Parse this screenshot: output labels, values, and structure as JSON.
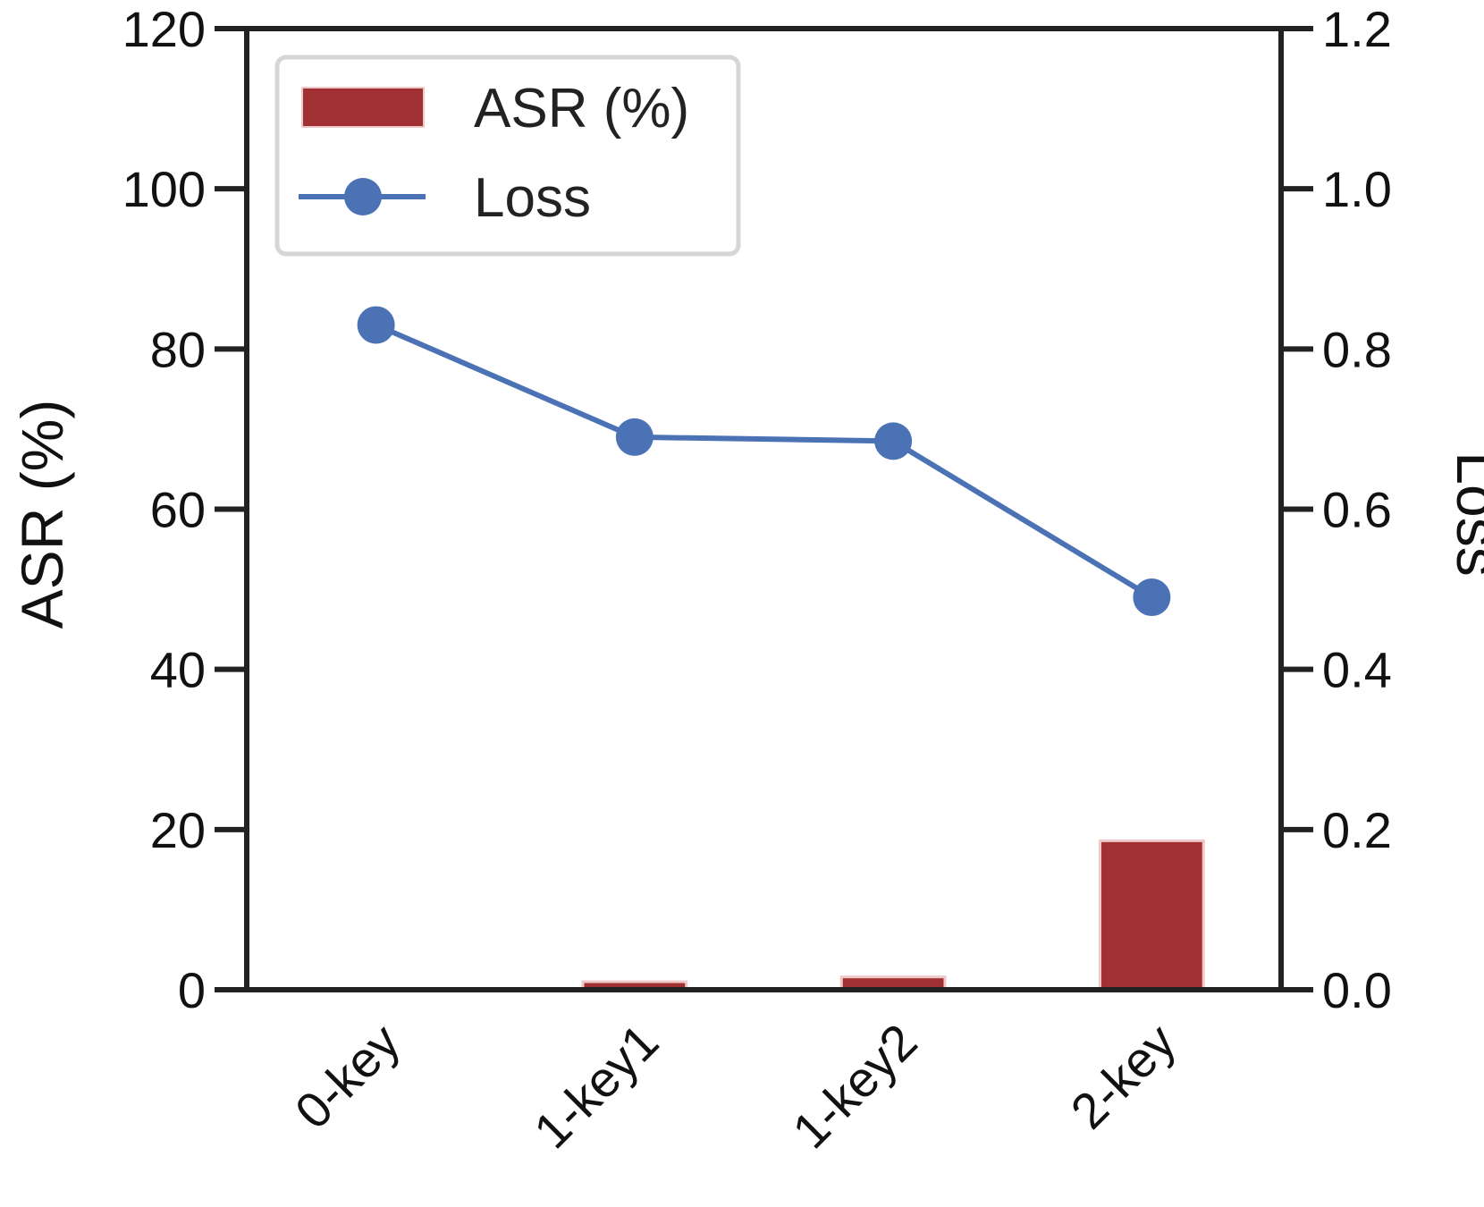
{
  "chart_data": {
    "type": "bar",
    "categories": [
      "0-key",
      "1-key1",
      "1-key2",
      "2-key"
    ],
    "series": [
      {
        "name": "ASR (%)",
        "type": "bar",
        "axis": "left",
        "values": [
          0.0,
          1.0,
          1.6,
          18.6
        ]
      },
      {
        "name": "Loss",
        "type": "line",
        "axis": "right",
        "values": [
          0.83,
          0.69,
          0.685,
          0.49
        ]
      }
    ],
    "ylabel": "ASR (%)",
    "y2label": "Loss",
    "ylim": [
      0,
      120
    ],
    "y2lim": [
      0,
      1.2
    ],
    "yticks": [
      "0",
      "20",
      "40",
      "60",
      "80",
      "100",
      "120"
    ],
    "y2ticks": [
      "0.0",
      "0.2",
      "0.4",
      "0.6",
      "0.8",
      "1.0",
      "1.2"
    ],
    "grid": false,
    "legend_position": "top-left",
    "colors": {
      "bar": "#a03032",
      "bar_edge": "#f0c8c8",
      "line": "#4a72b5",
      "axis": "#222222"
    }
  }
}
